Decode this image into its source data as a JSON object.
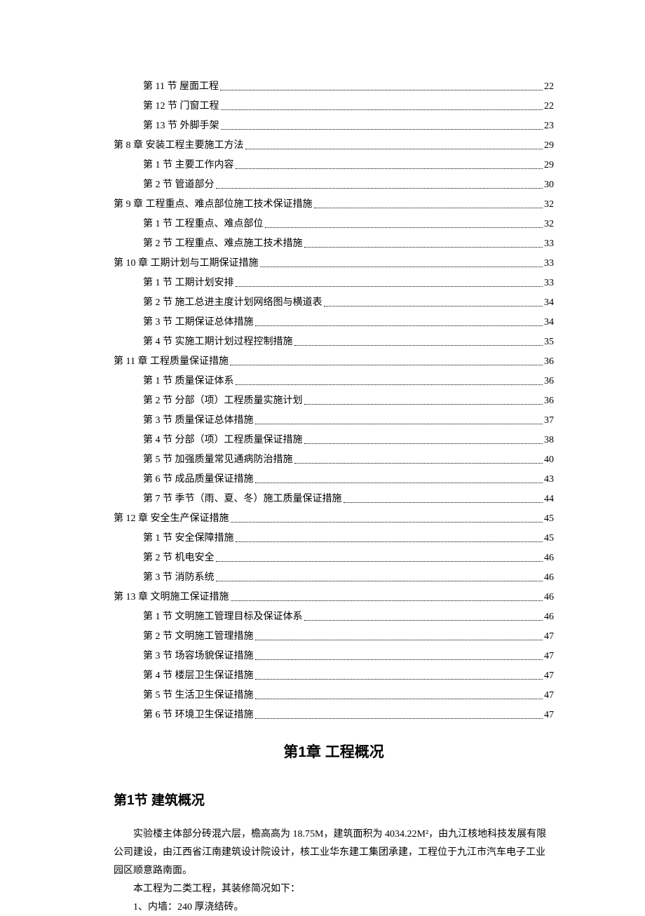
{
  "toc": [
    {
      "level": 1,
      "label": "第 11 节  屋面工程",
      "page": "22"
    },
    {
      "level": 1,
      "label": "第 12 节  门窗工程",
      "page": "22"
    },
    {
      "level": 1,
      "label": "第 13 节  外脚手架",
      "page": "23"
    },
    {
      "level": 0,
      "label": "第 8 章  安装工程主要施工方法",
      "page": "29"
    },
    {
      "level": 1,
      "label": "第 1 节  主要工作内容",
      "page": "29"
    },
    {
      "level": 1,
      "label": "第 2 节  管道部分",
      "page": "30"
    },
    {
      "level": 0,
      "label": "第 9 章  工程重点、难点部位施工技术保证措施",
      "page": "32"
    },
    {
      "level": 1,
      "label": "第 1 节  工程重点、难点部位",
      "page": "32"
    },
    {
      "level": 1,
      "label": "第 2 节  工程重点、难点施工技术措施",
      "page": "33"
    },
    {
      "level": 0,
      "label": "第 10 章  工期计划与工期保证措施",
      "page": "33"
    },
    {
      "level": 1,
      "label": "第 1 节  工期计划安排",
      "page": "33"
    },
    {
      "level": 1,
      "label": "第 2 节  施工总进主度计划网络图与横道表",
      "page": "34"
    },
    {
      "level": 1,
      "label": "第 3 节  工期保证总体措施",
      "page": "34"
    },
    {
      "level": 1,
      "label": "第 4 节  实施工期计划过程控制措施",
      "page": "35"
    },
    {
      "level": 0,
      "label": "第 11 章  工程质量保证措施",
      "page": "36"
    },
    {
      "level": 1,
      "label": "第 1 节  质量保证体系",
      "page": "36"
    },
    {
      "level": 1,
      "label": "第 2 节  分部（项）工程质量实施计划",
      "page": "36"
    },
    {
      "level": 1,
      "label": "第 3 节  质量保证总体措施",
      "page": "37"
    },
    {
      "level": 1,
      "label": "第 4 节  分部（项）工程质量保证措施",
      "page": "38"
    },
    {
      "level": 1,
      "label": "第 5 节  加强质量常见通病防治措施",
      "page": "40"
    },
    {
      "level": 1,
      "label": "第 6 节  成品质量保证措施",
      "page": "43"
    },
    {
      "level": 1,
      "label": "第 7 节  季节（雨、夏、冬）施工质量保证措施",
      "page": "44"
    },
    {
      "level": 0,
      "label": "第 12 章  安全生产保证措施",
      "page": "45"
    },
    {
      "level": 1,
      "label": "第 1 节  安全保障措施",
      "page": "45"
    },
    {
      "level": 1,
      "label": "第 2 节  机电安全",
      "page": "46"
    },
    {
      "level": 1,
      "label": "第 3 节  消防系统",
      "page": "46"
    },
    {
      "level": 0,
      "label": "第 13 章  文明施工保证措施",
      "page": "46"
    },
    {
      "level": 1,
      "label": "第 1 节  文明施工管理目标及保证体系",
      "page": "46"
    },
    {
      "level": 1,
      "label": "第 2 节  文明施工管理措施",
      "page": "47"
    },
    {
      "level": 1,
      "label": "第 3 节  场容场貌保证措施",
      "page": "47"
    },
    {
      "level": 1,
      "label": "第 4 节  楼层卫生保证措施",
      "page": "47"
    },
    {
      "level": 1,
      "label": "第 5 节  生活卫生保证措施",
      "page": "47"
    },
    {
      "level": 1,
      "label": "第 6 节  环境卫生保证措施",
      "page": "47"
    }
  ],
  "chapter_title": "第1章 工程概况",
  "section_title": "第1节 建筑概况",
  "paragraphs": [
    "实验楼主体部分砖混六层，檐高高为 18.75M，建筑面积为 4034.22M²，由九江核地科技发展有限公司建设，由江西省江南建筑设计院设计，核工业华东建工集团承建，工程位于九江市汽车电子工业园区顺意路南面。",
    "本工程为二类工程，其装修简况如下：",
    "1、内墙：240 厚浇结砖。"
  ],
  "colors": {
    "background": "#ffffff",
    "text": "#000000"
  },
  "typography": {
    "body_font": "SimSun",
    "heading_font": "SimHei",
    "toc_fontsize": 14,
    "chapter_fontsize": 21,
    "section_fontsize": 19,
    "body_fontsize": 14
  }
}
